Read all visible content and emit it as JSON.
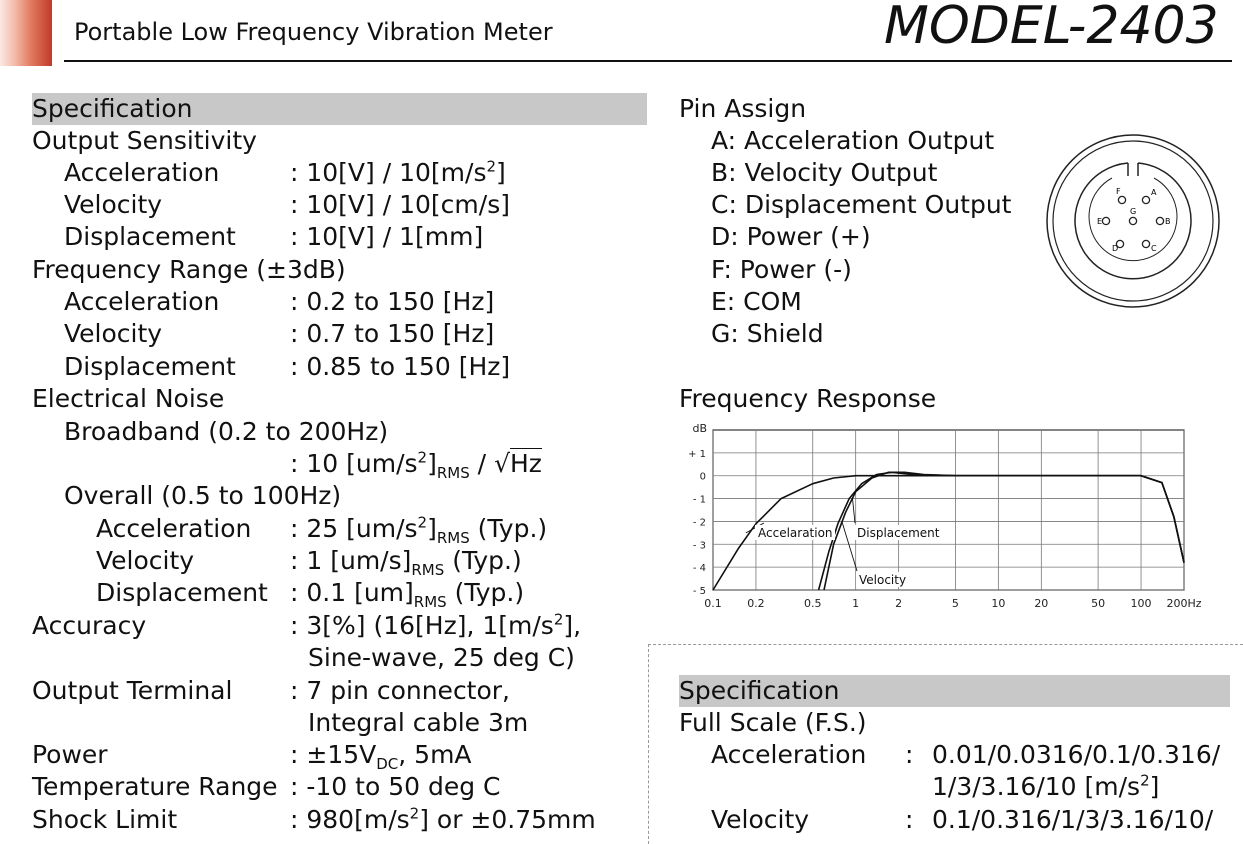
{
  "header": {
    "title": "Portable Low Frequency Vibration Meter",
    "model": "MODEL-2403"
  },
  "left": {
    "section_title": "Specification",
    "output_sensitivity": {
      "title": "Output Sensitivity",
      "acc_label": "Acceleration",
      "acc_value": ": 10[V] / 10[m/s",
      "acc_sup": "2",
      "acc_tail": "]",
      "vel_label": "Velocity",
      "vel_value": ": 10[V] / 10[cm/s]",
      "disp_label": "Displacement",
      "disp_value": ": 10[V] / 1[mm]"
    },
    "frequency_range": {
      "title": "Frequency Range (±3dB)",
      "acc_label": "Acceleration",
      "acc_value": ": 0.2 to 150 [Hz]",
      "vel_label": "Velocity",
      "vel_value": ": 0.7 to 150 [Hz]",
      "disp_label": "Displacement",
      "disp_value": ": 0.85 to 150 [Hz]"
    },
    "electrical_noise": {
      "title": "Electrical Noise",
      "broadband_label": "Broadband (0.2 to 200Hz)",
      "broadband_value_a": ": 10 [um/s",
      "broadband_sup": "2",
      "broadband_value_b": "]",
      "broadband_sub": "RMS",
      "broadband_value_c": " / ",
      "broadband_sqrt": "√",
      "broadband_value_d": "Hz",
      "overall_label": "Overall (0.5 to 100Hz)",
      "acc_label": "Acceleration",
      "acc_a": ": 25 [um/s",
      "acc_sup": "2",
      "acc_b": "]",
      "acc_sub": "RMS",
      "acc_c": " (Typ.)",
      "vel_label": "Velocity",
      "vel_a": ": 1 [um/s]",
      "vel_sub": "RMS",
      "vel_c": " (Typ.)",
      "disp_label": "Displacement",
      "disp_a": ": 0.1 [um]",
      "disp_sub": "RMS",
      "disp_c": " (Typ.)"
    },
    "accuracy": {
      "label": "Accuracy",
      "value_a": ": 3[%] (16[Hz], 1[m/s",
      "value_sup": "2",
      "value_b": "],",
      "value_line2": "Sine-wave, 25 deg C)"
    },
    "output_terminal": {
      "label": "Output Terminal",
      "value": ": 7 pin connector,",
      "value_line2": "Integral cable 3m"
    },
    "power": {
      "label": "Power",
      "value_a": ": ±15V",
      "value_sub": "DC",
      "value_b": ", 5mA"
    },
    "temperature": {
      "label": "Temperature Range",
      "value": ": -10 to 50 deg C"
    },
    "shock": {
      "label": "Shock Limit",
      "value_a": ": 980[m/s",
      "value_sup": "2",
      "value_b": "] or ±0.75mm"
    }
  },
  "pin_assign": {
    "title": "Pin Assign",
    "pins": [
      "A: Acceleration Output",
      "B: Velocity Output",
      "C: Displacement Output",
      "D: Power (+)",
      "F: Power (-)",
      "E: COM",
      "G: Shield"
    ],
    "connector_letters": [
      "F",
      "A",
      "E",
      "G",
      "B",
      "D",
      "C"
    ]
  },
  "frequency_response": {
    "title": "Frequency Response"
  },
  "chart_data": {
    "type": "line",
    "title": "",
    "ylabel": "dB",
    "xlabel": "",
    "x_scale": "log",
    "x_ticks": [
      0.1,
      0.2,
      0.5,
      1,
      2,
      5,
      10,
      20,
      50,
      100,
      200
    ],
    "x_tick_labels": [
      "0.1",
      "0.2",
      "0.5",
      "1",
      "2",
      "5",
      "10",
      "20",
      "50",
      "100",
      "200Hz"
    ],
    "y_ticks": [
      1,
      0,
      -1,
      -2,
      -3,
      -4,
      -5
    ],
    "y_tick_labels": [
      "+ 1",
      "0",
      "- 1",
      "- 2",
      "- 3",
      "- 4",
      "- 5"
    ],
    "xlim": [
      0.1,
      200
    ],
    "ylim": [
      -5,
      2
    ],
    "grid": true,
    "series": [
      {
        "name": "Accelaration",
        "x": [
          0.1,
          0.15,
          0.2,
          0.3,
          0.5,
          0.7,
          1,
          2,
          5,
          10,
          50,
          100,
          140,
          170,
          200
        ],
        "y": [
          -5,
          -3.2,
          -2.1,
          -1.0,
          -0.35,
          -0.1,
          0,
          0,
          0,
          0,
          0,
          0,
          -0.3,
          -1.8,
          -3.8
        ]
      },
      {
        "name": "Velocity",
        "x": [
          0.55,
          0.65,
          0.75,
          0.9,
          1.1,
          1.4,
          1.8,
          2.5,
          5,
          10,
          50,
          100,
          140,
          170,
          200
        ],
        "y": [
          -5,
          -3.3,
          -2.1,
          -1.0,
          -0.35,
          0.05,
          0.15,
          0.05,
          0,
          0,
          0,
          0,
          -0.3,
          -1.8,
          -3.8
        ]
      },
      {
        "name": "Displacement",
        "x": [
          0.6,
          0.7,
          0.85,
          1.0,
          1.3,
          1.7,
          2.2,
          3,
          5,
          10,
          50,
          100,
          140,
          170,
          200
        ],
        "y": [
          -5,
          -3.0,
          -1.6,
          -0.7,
          -0.1,
          0.15,
          0.15,
          0.05,
          0,
          0,
          0,
          0,
          -0.3,
          -1.8,
          -3.8
        ]
      }
    ]
  },
  "right_spec": {
    "section_title": "Specification",
    "full_scale_title": "Full Scale (F.S.)",
    "acc_label": "Acceleration",
    "acc_colon": ":",
    "acc_line1": "0.01/0.0316/0.1/0.316/",
    "acc_line2_a": "1/3/3.16/10 [m/s",
    "acc_line2_sup": "2",
    "acc_line2_b": "]",
    "vel_label": "Velocity",
    "vel_colon": ":",
    "vel_line1": "0.1/0.316/1/3/3.16/10/"
  }
}
